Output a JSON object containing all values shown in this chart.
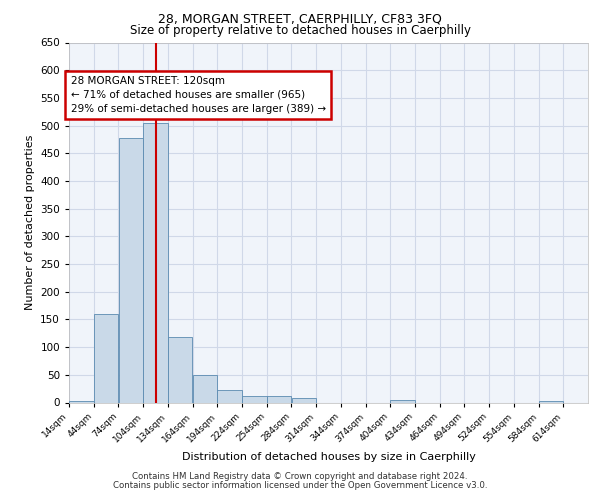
{
  "title1": "28, MORGAN STREET, CAERPHILLY, CF83 3FQ",
  "title2": "Size of property relative to detached houses in Caerphilly",
  "xlabel": "Distribution of detached houses by size in Caerphilly",
  "ylabel": "Number of detached properties",
  "footer1": "Contains HM Land Registry data © Crown copyright and database right 2024.",
  "footer2": "Contains public sector information licensed under the Open Government Licence v3.0.",
  "annotation_line1": "28 MORGAN STREET: 120sqm",
  "annotation_line2": "← 71% of detached houses are smaller (965)",
  "annotation_line3": "29% of semi-detached houses are larger (389) →",
  "bins": [
    14,
    44,
    74,
    104,
    134,
    164,
    194,
    224,
    254,
    284,
    314,
    344,
    374,
    404,
    434,
    464,
    494,
    524,
    554,
    584,
    614
  ],
  "values": [
    2,
    160,
    478,
    505,
    118,
    50,
    23,
    12,
    11,
    8,
    0,
    0,
    0,
    5,
    0,
    0,
    0,
    0,
    0,
    3
  ],
  "bar_color": "#c9d9e8",
  "bar_edge_color": "#5a8ab0",
  "vline_x": 120,
  "vline_color": "#cc0000",
  "ylim": [
    0,
    650
  ],
  "yticks": [
    0,
    50,
    100,
    150,
    200,
    250,
    300,
    350,
    400,
    450,
    500,
    550,
    600,
    650
  ],
  "annotation_box_color": "#cc0000",
  "grid_color": "#d0d8e8",
  "bg_color": "#f0f4fa"
}
